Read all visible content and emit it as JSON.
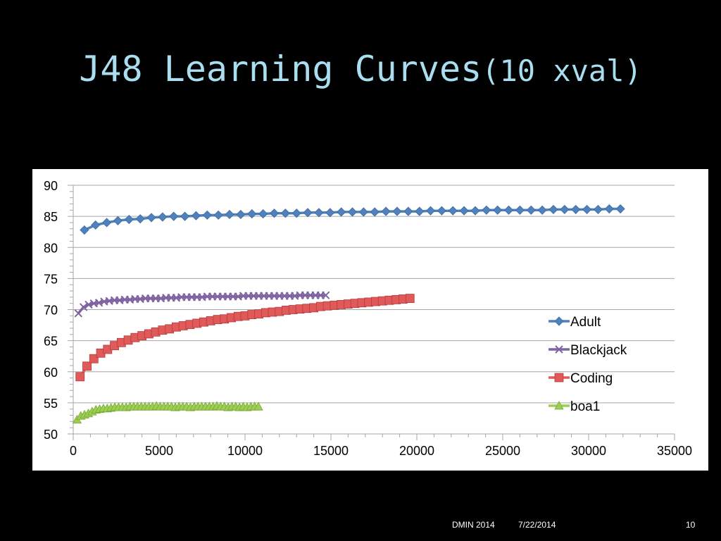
{
  "slide": {
    "title": "J48 Learning Curves",
    "title_sub": "(10 xval)",
    "footer_left": "DMIN 2014",
    "footer_date": "7/22/2014",
    "page_number": "10"
  },
  "colors": {
    "background": "#000000",
    "title": "#a9ddf0",
    "panel": "#ffffff",
    "grid": "#a6a6a6",
    "Adult": "#4f81bd",
    "Blackjack": "#8064a2",
    "Coding": "#e05a5a",
    "boa1": "#9bcf50"
  },
  "chart_data": {
    "type": "line",
    "title": "",
    "xlabel": "",
    "ylabel": "",
    "xlim": [
      0,
      35000
    ],
    "ylim": [
      50,
      90
    ],
    "x_ticks": [
      0,
      5000,
      10000,
      15000,
      20000,
      25000,
      30000,
      35000
    ],
    "y_ticks": [
      50,
      55,
      60,
      65,
      70,
      75,
      80,
      85,
      90
    ],
    "grid": "horizontal",
    "legend": "right",
    "series": [
      {
        "name": "Adult",
        "marker": "diamond",
        "x": [
          650,
          1300,
          1950,
          2600,
          3250,
          3900,
          4550,
          5200,
          5850,
          6500,
          7150,
          7800,
          8450,
          9100,
          9750,
          10400,
          11050,
          11700,
          12350,
          13000,
          13650,
          14300,
          14950,
          15600,
          16250,
          16900,
          17550,
          18200,
          18850,
          19500,
          20150,
          20800,
          21450,
          22100,
          22750,
          23400,
          24050,
          24700,
          25350,
          26000,
          26650,
          27300,
          27950,
          28600,
          29250,
          29900,
          30550,
          31200,
          31850
        ],
        "y": [
          82.8,
          83.6,
          84.0,
          84.3,
          84.5,
          84.6,
          84.8,
          84.9,
          85.0,
          85.0,
          85.1,
          85.2,
          85.2,
          85.3,
          85.3,
          85.4,
          85.4,
          85.5,
          85.5,
          85.5,
          85.6,
          85.6,
          85.6,
          85.7,
          85.7,
          85.7,
          85.7,
          85.8,
          85.8,
          85.8,
          85.8,
          85.9,
          85.9,
          85.9,
          85.9,
          85.9,
          86.0,
          86.0,
          86.0,
          86.0,
          86.0,
          86.0,
          86.1,
          86.1,
          86.1,
          86.1,
          86.1,
          86.2,
          86.2
        ]
      },
      {
        "name": "Blackjack",
        "marker": "x",
        "x": [
          300,
          600,
          900,
          1200,
          1500,
          1800,
          2100,
          2400,
          2700,
          3000,
          3300,
          3600,
          3900,
          4200,
          4500,
          4800,
          5100,
          5400,
          5700,
          6000,
          6300,
          6600,
          6900,
          7200,
          7500,
          7800,
          8100,
          8400,
          8700,
          9000,
          9300,
          9600,
          9900,
          10200,
          10500,
          10800,
          11100,
          11400,
          11700,
          12000,
          12300,
          12600,
          12900,
          13200,
          13500,
          13800,
          14100,
          14400,
          14700
        ],
        "y": [
          69.4,
          70.4,
          70.8,
          71.0,
          71.1,
          71.3,
          71.4,
          71.5,
          71.5,
          71.6,
          71.6,
          71.7,
          71.7,
          71.8,
          71.8,
          71.8,
          71.8,
          71.9,
          71.9,
          71.9,
          72.0,
          72.0,
          72.0,
          72.0,
          72.0,
          72.1,
          72.1,
          72.1,
          72.1,
          72.1,
          72.1,
          72.1,
          72.2,
          72.2,
          72.2,
          72.2,
          72.2,
          72.2,
          72.2,
          72.2,
          72.2,
          72.2,
          72.2,
          72.3,
          72.3,
          72.3,
          72.3,
          72.3,
          72.3
        ]
      },
      {
        "name": "Coding",
        "marker": "square",
        "x": [
          400,
          800,
          1200,
          1600,
          2000,
          2400,
          2800,
          3200,
          3600,
          4000,
          4400,
          4800,
          5200,
          5600,
          6000,
          6400,
          6800,
          7200,
          7600,
          8000,
          8400,
          8800,
          9200,
          9600,
          10000,
          10400,
          10800,
          11200,
          11600,
          12000,
          12400,
          12800,
          13200,
          13600,
          14000,
          14400,
          14800,
          15200,
          15600,
          16000,
          16400,
          16800,
          17200,
          17600,
          18000,
          18400,
          18800,
          19200,
          19600
        ],
        "y": [
          59.2,
          60.9,
          62.1,
          63.0,
          63.6,
          64.2,
          64.7,
          65.1,
          65.5,
          65.8,
          66.1,
          66.4,
          66.7,
          66.9,
          67.2,
          67.4,
          67.6,
          67.8,
          68.0,
          68.2,
          68.4,
          68.5,
          68.7,
          68.9,
          69.0,
          69.2,
          69.3,
          69.5,
          69.6,
          69.7,
          69.9,
          70.0,
          70.1,
          70.2,
          70.3,
          70.5,
          70.6,
          70.7,
          70.8,
          70.9,
          71.0,
          71.1,
          71.2,
          71.3,
          71.4,
          71.5,
          71.6,
          71.7,
          71.8
        ]
      },
      {
        "name": "boa1",
        "marker": "triangle",
        "x": [
          220,
          440,
          660,
          880,
          1100,
          1320,
          1540,
          1760,
          1980,
          2200,
          2420,
          2640,
          2860,
          3080,
          3300,
          3520,
          3740,
          3960,
          4180,
          4400,
          4620,
          4840,
          5060,
          5280,
          5500,
          5720,
          5940,
          6160,
          6380,
          6600,
          6820,
          7040,
          7260,
          7480,
          7700,
          7920,
          8140,
          8360,
          8580,
          8800,
          9020,
          9240,
          9460,
          9680,
          9900,
          10120,
          10340,
          10560,
          10780
        ],
        "y": [
          52.3,
          52.9,
          53.1,
          53.3,
          53.6,
          53.9,
          54.0,
          54.1,
          54.1,
          54.2,
          54.3,
          54.3,
          54.3,
          54.3,
          54.4,
          54.4,
          54.4,
          54.4,
          54.4,
          54.4,
          54.4,
          54.5,
          54.4,
          54.4,
          54.4,
          54.4,
          54.3,
          54.4,
          54.4,
          54.4,
          54.3,
          54.4,
          54.4,
          54.4,
          54.4,
          54.4,
          54.4,
          54.5,
          54.4,
          54.4,
          54.3,
          54.4,
          54.4,
          54.3,
          54.4,
          54.3,
          54.4,
          54.4,
          54.4
        ]
      }
    ]
  }
}
